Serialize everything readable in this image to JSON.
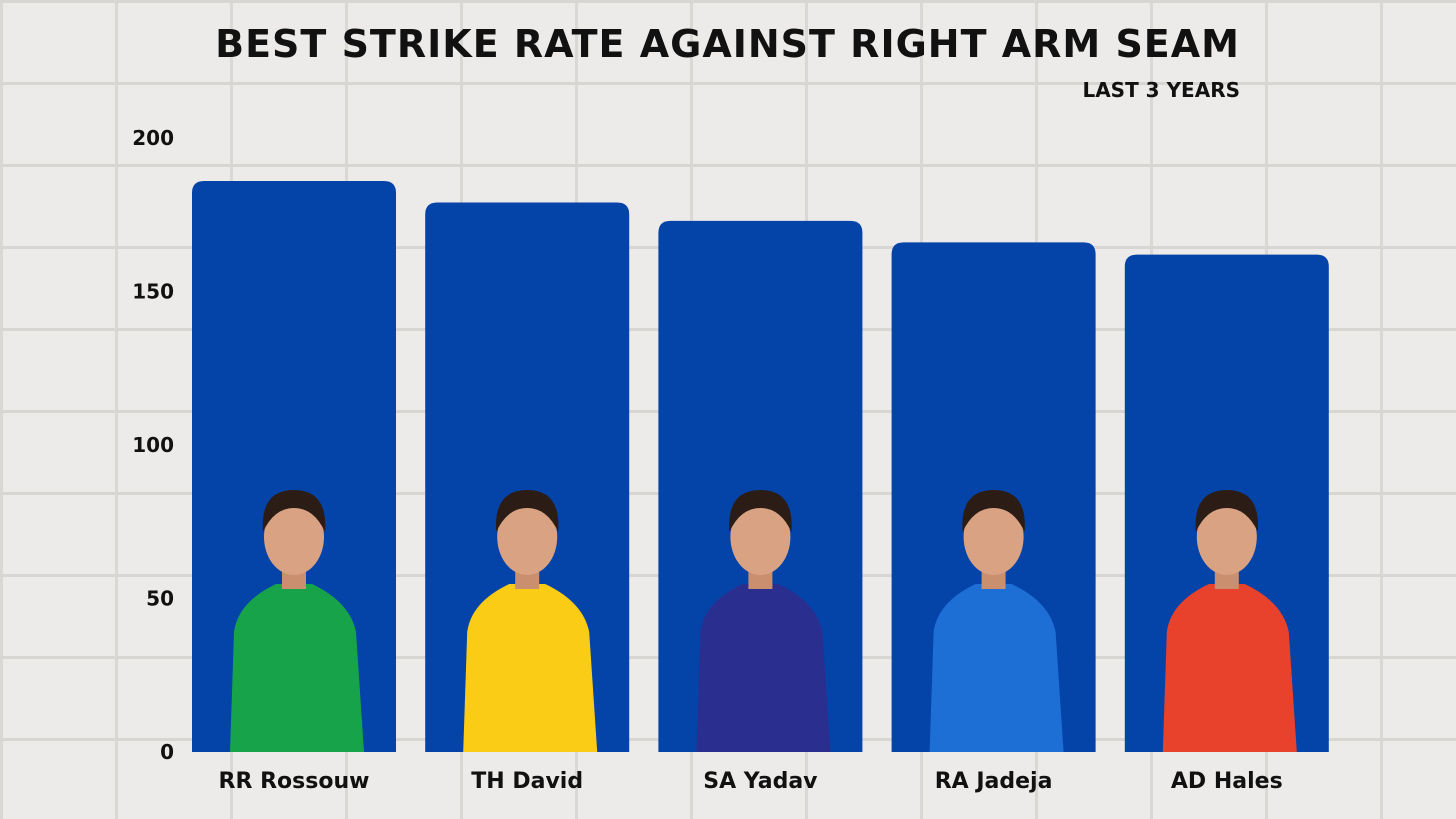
{
  "chart_data": {
    "type": "bar",
    "title": "Best strike rate against right arm seam",
    "subtitle": "Last 3 years",
    "categories": [
      "RR Rossouw",
      "TH David",
      "SA Yadav",
      "RA Jadeja",
      "AD Hales"
    ],
    "values": [
      186,
      179,
      173,
      166,
      162
    ],
    "ylim": [
      0,
      200
    ],
    "yticks": [
      0,
      50,
      100,
      150,
      200
    ],
    "grid": false,
    "legend": "none",
    "xlabel": "",
    "ylabel": "",
    "bar_color": "#0443a8",
    "jersey_colors": [
      "#16a34a",
      "#facc15",
      "#2a2f8f",
      "#1d6fd6",
      "#e8412c"
    ]
  }
}
